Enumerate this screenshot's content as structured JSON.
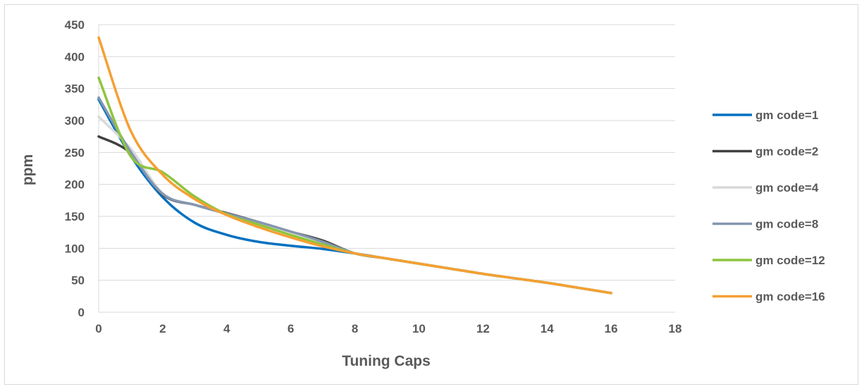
{
  "chart_data": {
    "type": "line",
    "title": "",
    "xlabel": "Tuning Caps",
    "ylabel": "ppm",
    "xlim": [
      0,
      18
    ],
    "ylim": [
      0,
      450
    ],
    "xticks": [
      0,
      2,
      4,
      6,
      8,
      10,
      12,
      14,
      16,
      18
    ],
    "yticks": [
      0,
      50,
      100,
      150,
      200,
      250,
      300,
      350,
      400,
      450
    ],
    "grid": "horizontal",
    "legend_position": "right",
    "x": [
      0,
      1,
      2,
      3,
      4,
      5,
      6,
      7,
      8,
      9,
      10,
      11,
      12,
      13,
      14,
      15,
      16
    ],
    "series": [
      {
        "name": "gm code=1",
        "color": "#0070C0",
        "values": [
          333,
          245,
          180,
          140,
          121,
          110,
          104,
          99,
          92,
          84,
          76,
          68,
          60,
          53,
          46,
          38,
          30
        ]
      },
      {
        "name": "gm code=2",
        "color": "#404040",
        "values": [
          275,
          249,
          184,
          168,
          155,
          141,
          126,
          112,
          92,
          84,
          76,
          68,
          60,
          53,
          46,
          38,
          30
        ]
      },
      {
        "name": "gm code=4",
        "color": "#D9D9D9",
        "values": [
          306,
          256,
          186,
          168,
          154,
          140,
          126,
          110,
          92,
          84,
          76,
          68,
          60,
          53,
          46,
          38,
          30
        ]
      },
      {
        "name": "gm code=8",
        "color": "#8497B0",
        "values": [
          336,
          251,
          185,
          168,
          154,
          141,
          126,
          110,
          92,
          84,
          76,
          68,
          60,
          53,
          46,
          38,
          30
        ]
      },
      {
        "name": "gm code=12",
        "color": "#8FC43E",
        "values": [
          367,
          244,
          219,
          181,
          153,
          137,
          121,
          106,
          92,
          84,
          76,
          68,
          60,
          53,
          46,
          38,
          30
        ]
      },
      {
        "name": "gm code=16",
        "color": "#F5A032",
        "values": [
          430,
          284,
          215,
          177,
          152,
          133,
          117,
          103,
          92,
          84,
          76,
          68,
          60,
          53,
          46,
          38,
          30
        ]
      }
    ]
  }
}
